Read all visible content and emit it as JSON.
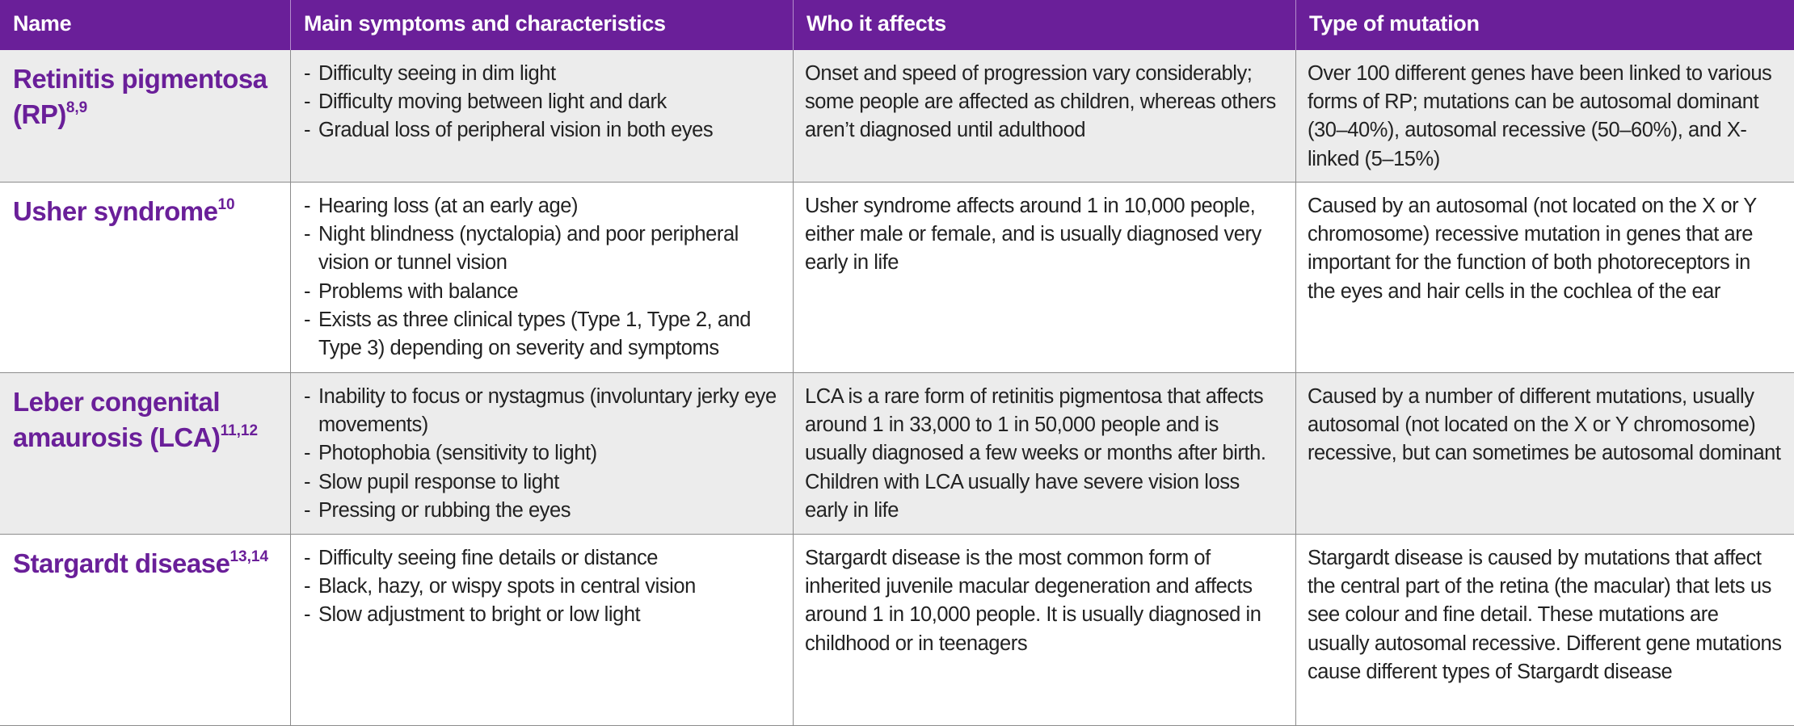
{
  "headers": {
    "name": "Name",
    "symptoms": "Main symptoms and characteristics",
    "affects": "Who it affects",
    "mutation": "Type of mutation"
  },
  "rows": [
    {
      "name": "Retinitis pigmentosa (RP)",
      "refs": "8,9",
      "symptoms": [
        "Difficulty seeing in dim light",
        "Difficulty moving between light and dark",
        "Gradual loss of peripheral vision in both eyes"
      ],
      "affects": "Onset and speed of progression vary considerably; some people are affected as children, whereas others aren’t diagnosed until adulthood",
      "mutation": "Over 100 different genes have been linked to various forms of RP; mutations can be autosomal dominant (30–40%), autosomal recessive (50–60%), and X-linked (5–15%)"
    },
    {
      "name": "Usher syndrome",
      "refs": "10",
      "symptoms": [
        "Hearing loss (at an early age)",
        "Night blindness (nyctalopia) and poor peripheral vision or tunnel vision",
        "Problems with balance",
        "Exists as three clinical types (Type 1, Type 2, and Type 3) depending on severity and symptoms"
      ],
      "affects": "Usher syndrome affects around 1 in 10,000 people, either male or female, and is usually diagnosed very early in life",
      "mutation": "Caused by an autosomal (not located on the X or Y chromosome) recessive mutation in genes that are important for the function of both photoreceptors in the eyes and hair cells in the cochlea of the ear"
    },
    {
      "name": "Leber congenital amaurosis (LCA)",
      "refs": "11,12",
      "symptoms": [
        "Inability to focus or nystagmus (involuntary jerky eye movements)",
        "Photophobia (sensitivity to light)",
        "Slow pupil response to light",
        "Pressing or rubbing the eyes"
      ],
      "affects": "LCA is a rare form of retinitis pigmentosa that affects around 1 in 33,000 to 1 in 50,000 people and is usually diagnosed a few weeks or months after birth. Children with LCA usually have severe vision loss early in life",
      "mutation": "Caused by a number of different mutations, usually autosomal (not located on the X or Y chromosome) recessive, but can sometimes be autosomal dominant"
    },
    {
      "name": "Stargardt disease",
      "refs": "13,14",
      "symptoms": [
        "Difficulty seeing fine details or distance",
        "Black, hazy, or wispy spots in central vision",
        "Slow adjustment to bright or low light"
      ],
      "affects": "Stargardt disease is the most common form of inherited juvenile macular degeneration and affects around 1 in 10,000 people. It is usually diagnosed in childhood or in teenagers",
      "mutation": "Stargardt disease is caused by mutations that affect the central part of the retina (the macular) that lets us see colour and fine detail. These mutations are usually autosomal recessive. Different gene mutations cause different types of Stargardt disease"
    }
  ]
}
